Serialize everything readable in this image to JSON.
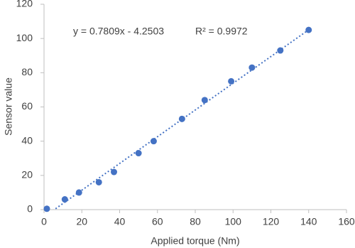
{
  "chart_data": {
    "type": "scatter",
    "x_label": "Applied torque (Nm)",
    "y_label": "Sensor value",
    "series": [
      {
        "color": "#4472c4",
        "x": [
          1.5,
          11,
          18.5,
          29,
          37,
          50,
          58,
          73,
          85,
          99,
          110,
          125,
          140
        ],
        "values": [
          0.5,
          6,
          10,
          16,
          22,
          33,
          40,
          53,
          64,
          75,
          83,
          93,
          105
        ]
      }
    ],
    "trendline": {
      "slope": 0.7809,
      "intercept": -4.2503,
      "equation": "y = 0.7809x - 4.2503",
      "r_squared": "R² = 0.9972",
      "style": "dotted"
    },
    "xlim": [
      0,
      160
    ],
    "xticks": [
      0,
      20,
      40,
      60,
      80,
      100,
      120,
      140,
      160
    ],
    "ylim": [
      0,
      120
    ],
    "yticks": [
      0,
      20,
      40,
      60,
      80,
      100,
      120
    ],
    "grid": false
  }
}
